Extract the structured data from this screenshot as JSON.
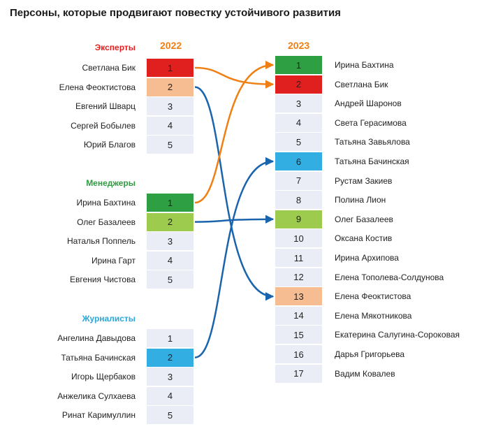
{
  "title": "Персоны, которые продвигают повестку устойчивого развития",
  "year_left": "2022",
  "year_right": "2023",
  "colors": {
    "year": "#f07f13",
    "cell_default": "#ebedf6",
    "red": "#e0201e",
    "peach": "#f6bd93",
    "green": "#2ea043",
    "lightgreen": "#9dcb4e",
    "blue": "#32aee3",
    "arrow_orange": "#f07f13",
    "arrow_blue": "#1a64ad"
  },
  "groups": [
    {
      "label": "Эксперты",
      "color": "#e41d1d",
      "people": [
        {
          "name": "Светлана Бик",
          "rank": "1",
          "fill": "#e0201e"
        },
        {
          "name": "Елена Феоктистова",
          "rank": "2",
          "fill": "#f6bd93"
        },
        {
          "name": "Евгений Шварц",
          "rank": "3",
          "fill": "#ebedf6"
        },
        {
          "name": "Сергей Бобылев",
          "rank": "4",
          "fill": "#ebedf6"
        },
        {
          "name": "Юрий Благов",
          "rank": "5",
          "fill": "#ebedf6"
        }
      ]
    },
    {
      "label": "Менеджеры",
      "color": "#2e9b3f",
      "people": [
        {
          "name": "Ирина Бахтина",
          "rank": "1",
          "fill": "#2ea043"
        },
        {
          "name": "Олег Базалеев",
          "rank": "2",
          "fill": "#9dcb4e"
        },
        {
          "name": "Наталья Поппель",
          "rank": "3",
          "fill": "#ebedf6"
        },
        {
          "name": "Ирина Гарт",
          "rank": "4",
          "fill": "#ebedf6"
        },
        {
          "name": "Евгения Чистова",
          "rank": "5",
          "fill": "#ebedf6"
        }
      ]
    },
    {
      "label": "Журналисты",
      "color": "#2aa6d8",
      "people": [
        {
          "name": "Ангелина Давыдова",
          "rank": "1",
          "fill": "#ebedf6"
        },
        {
          "name": "Татьяна Бачинская",
          "rank": "2",
          "fill": "#32aee3"
        },
        {
          "name": "Игорь Щербаков",
          "rank": "3",
          "fill": "#ebedf6"
        },
        {
          "name": "Анжелика Сулхаева",
          "rank": "4",
          "fill": "#ebedf6"
        },
        {
          "name": "Ринат Каримуллин",
          "rank": "5",
          "fill": "#ebedf6"
        }
      ]
    }
  ],
  "ranking_2023": [
    {
      "name": "Ирина Бахтина",
      "rank": "1",
      "fill": "#2ea043"
    },
    {
      "name": "Светлана Бик",
      "rank": "2",
      "fill": "#e0201e"
    },
    {
      "name": "Андрей Шаронов",
      "rank": "3",
      "fill": "#ebedf6"
    },
    {
      "name": "Света Герасимова",
      "rank": "4",
      "fill": "#ebedf6"
    },
    {
      "name": "Татьяна Завьялова",
      "rank": "5",
      "fill": "#ebedf6"
    },
    {
      "name": "Татьяна Бачинская",
      "rank": "6",
      "fill": "#32aee3"
    },
    {
      "name": "Рустам Закиев",
      "rank": "7",
      "fill": "#ebedf6"
    },
    {
      "name": "Полина Лион",
      "rank": "8",
      "fill": "#ebedf6"
    },
    {
      "name": "Олег Базалеев",
      "rank": "9",
      "fill": "#9dcb4e"
    },
    {
      "name": "Оксана Костив",
      "rank": "10",
      "fill": "#ebedf6"
    },
    {
      "name": "Ирина Архипова",
      "rank": "11",
      "fill": "#ebedf6"
    },
    {
      "name": "Елена Тополева-Солдунова",
      "rank": "12",
      "fill": "#ebedf6"
    },
    {
      "name": "Елена Феоктистова",
      "rank": "13",
      "fill": "#f6bd93"
    },
    {
      "name": "Елена Мякотникова",
      "rank": "14",
      "fill": "#ebedf6"
    },
    {
      "name": "Екатерина Салугина-Сороковая",
      "rank": "15",
      "fill": "#ebedf6"
    },
    {
      "name": "Дарья Григорьева",
      "rank": "16",
      "fill": "#ebedf6"
    },
    {
      "name": "Вадим Ковалев",
      "rank": "17",
      "fill": "#ebedf6"
    }
  ],
  "links": [
    {
      "from_group": 0,
      "from_index": 0,
      "to_rank": 2,
      "color": "#f07f13"
    },
    {
      "from_group": 0,
      "from_index": 1,
      "to_rank": 13,
      "color": "#1a64ad"
    },
    {
      "from_group": 1,
      "from_index": 0,
      "to_rank": 1,
      "color": "#f07f13"
    },
    {
      "from_group": 1,
      "from_index": 1,
      "to_rank": 9,
      "color": "#1a64ad"
    },
    {
      "from_group": 2,
      "from_index": 1,
      "to_rank": 6,
      "color": "#1a64ad"
    }
  ]
}
